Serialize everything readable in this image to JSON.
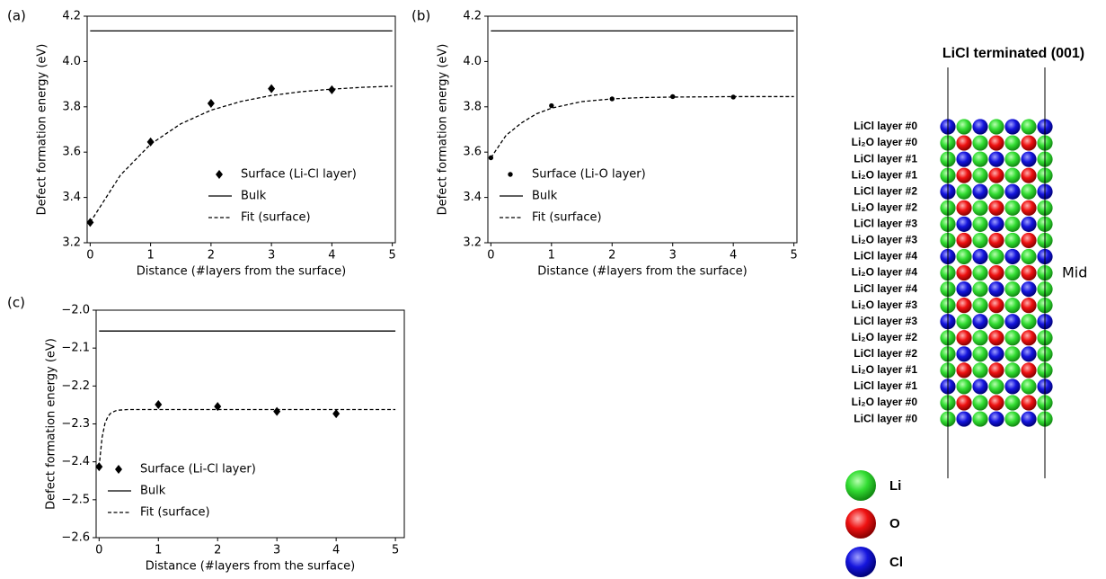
{
  "chart_data": [
    {
      "type": "line",
      "panel": "(a)",
      "xlabel": "Distance (#layers from the surface)",
      "ylabel": "Defect formation energy (eV)",
      "xlim": [
        -0.05,
        5.05
      ],
      "xticks": [
        0,
        1,
        2,
        3,
        4,
        5
      ],
      "ylim": [
        3.2,
        4.2
      ],
      "yticks": [
        3.2,
        3.4,
        3.6,
        3.8,
        {
          "value": 4,
          "label": "4.0"
        },
        4.2
      ],
      "legend": "lower right",
      "series": [
        {
          "name": "Surface (Li-Cl layer)",
          "color": "#000000",
          "marker": "diamond",
          "x": [
            0,
            1,
            2,
            3,
            4
          ],
          "values": [
            3.29,
            3.645,
            3.815,
            3.88,
            3.875
          ]
        },
        {
          "name": "Bulk",
          "color": "#000000",
          "linestyle": "solid",
          "x": [
            0,
            5
          ],
          "values": [
            4.135,
            4.135
          ]
        },
        {
          "name": "Fit (surface)",
          "color": "#000000",
          "linestyle": "dashed",
          "x": [
            0,
            0.5,
            1,
            1.5,
            2,
            2.5,
            3,
            3.5,
            4,
            4.5,
            5
          ],
          "values": [
            3.29,
            3.498,
            3.635,
            3.725,
            3.785,
            3.824,
            3.85,
            3.867,
            3.878,
            3.886,
            3.891
          ]
        }
      ]
    },
    {
      "type": "line",
      "panel": "(b)",
      "xlabel": "Distance (#layers from the surface)",
      "ylabel": "Defect formation energy (eV)",
      "xlim": [
        -0.05,
        5.05
      ],
      "xticks": [
        0,
        1,
        2,
        3,
        4,
        5
      ],
      "ylim": [
        3.2,
        4.2
      ],
      "yticks": [
        3.2,
        3.4,
        3.6,
        3.8,
        {
          "value": 4,
          "label": "4.0"
        },
        4.2
      ],
      "legend": "lower left",
      "series": [
        {
          "name": "Surface (Li-O layer)",
          "color": "#000000",
          "marker": "circle",
          "x": [
            0,
            1,
            2,
            3,
            4
          ],
          "values": [
            3.575,
            3.805,
            3.835,
            3.845,
            3.843
          ]
        },
        {
          "name": "Bulk",
          "color": "#000000",
          "linestyle": "solid",
          "x": [
            0,
            5
          ],
          "values": [
            4.135,
            4.135
          ]
        },
        {
          "name": "Fit (surface)",
          "color": "#000000",
          "linestyle": "dashed",
          "x": [
            0,
            0.25,
            0.5,
            0.75,
            1,
            1.5,
            2,
            2.5,
            3,
            4,
            5
          ],
          "values": [
            3.575,
            3.674,
            3.728,
            3.769,
            3.794,
            3.823,
            3.835,
            3.841,
            3.843,
            3.845,
            3.845
          ]
        }
      ]
    },
    {
      "type": "line",
      "panel": "(c)",
      "xlabel": "Distance (#layers from the surface)",
      "ylabel": "Defect formation energy (eV)",
      "xlim": [
        -0.05,
        5.15
      ],
      "xticks": [
        0,
        1,
        2,
        3,
        4,
        5
      ],
      "ylim": [
        -2.6,
        -2.0
      ],
      "yticks": [
        {
          "value": -2.6,
          "label": "−2.6"
        },
        {
          "value": -2.5,
          "label": "−2.5"
        },
        {
          "value": -2.4,
          "label": "−2.4"
        },
        {
          "value": -2.3,
          "label": "−2.3"
        },
        {
          "value": -2.2,
          "label": "−2.2"
        },
        {
          "value": -2.1,
          "label": "−2.1"
        },
        {
          "value": -2.0,
          "label": "−2.0"
        }
      ],
      "legend": "lower left",
      "series": [
        {
          "name": "Surface (Li-Cl layer)",
          "color": "#000000",
          "marker": "diamond",
          "x": [
            0,
            1,
            2,
            3,
            4
          ],
          "values": [
            -2.413,
            -2.249,
            -2.254,
            -2.267,
            -2.273
          ]
        },
        {
          "name": "Bulk",
          "color": "#000000",
          "linestyle": "solid",
          "x": [
            0,
            5
          ],
          "values": [
            -2.055,
            -2.055
          ]
        },
        {
          "name": "Fit (surface)",
          "color": "#000000",
          "linestyle": "dashed",
          "x": [
            0,
            0.05,
            0.1,
            0.15,
            0.2,
            0.3,
            0.5,
            1,
            2,
            3,
            4,
            5
          ],
          "values": [
            -2.413,
            -2.336,
            -2.298,
            -2.28,
            -2.271,
            -2.264,
            -2.262,
            -2.262,
            -2.262,
            -2.262,
            -2.262,
            -2.262
          ]
        }
      ]
    }
  ],
  "diagram": {
    "title": "LiCl terminated (001)",
    "mid_label": "Mid",
    "layers": [
      "LiCl layer #0",
      "Li₂O layer #0",
      "LiCl layer #1",
      "Li₂O layer #1",
      "LiCl layer #2",
      "Li₂O layer #2",
      "LiCl layer #3",
      "Li₂O layer #3",
      "LiCl layer #4",
      "Li₂O layer #4",
      "LiCl layer #4",
      "Li₂O layer #3",
      "LiCl layer #3",
      "Li₂O layer #2",
      "LiCl layer #2",
      "Li₂O layer #1",
      "LiCl layer #1",
      "Li₂O layer #0",
      "LiCl layer #0"
    ],
    "legend": [
      "Li",
      "O",
      "Cl"
    ]
  }
}
